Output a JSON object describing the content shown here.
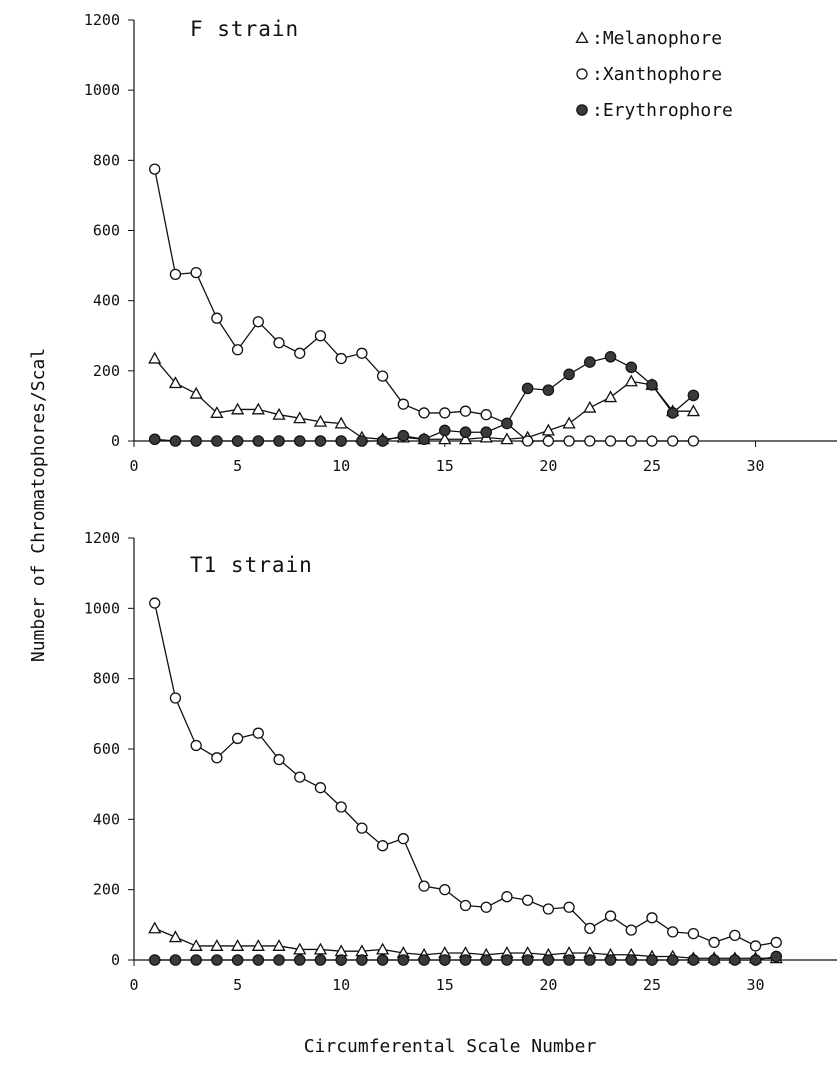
{
  "chart_data": [
    {
      "type": "line",
      "title": "F strain",
      "ylim": [
        0,
        1200
      ],
      "xlim": [
        0,
        32
      ],
      "yticks": [
        0,
        200,
        400,
        600,
        800,
        1000,
        1200
      ],
      "xticks": [
        0,
        5,
        10,
        15,
        20,
        25,
        30
      ],
      "legend": {
        "placement": "top-right",
        "entries": [
          {
            "marker": "triangle",
            "label": ":Melanophore"
          },
          {
            "marker": "circle-open",
            "label": ":Xanthophore"
          },
          {
            "marker": "circle-filled",
            "label": ":Erythrophore"
          }
        ]
      },
      "series": [
        {
          "name": "Melanophore",
          "marker": "triangle",
          "x": [
            1,
            2,
            3,
            4,
            5,
            6,
            7,
            8,
            9,
            10,
            11,
            12,
            13,
            14,
            15,
            16,
            17,
            18,
            19,
            20,
            21,
            22,
            23,
            24,
            25,
            26,
            27
          ],
          "values": [
            235,
            165,
            135,
            80,
            90,
            90,
            75,
            65,
            55,
            50,
            10,
            5,
            10,
            5,
            5,
            5,
            10,
            5,
            10,
            30,
            50,
            95,
            125,
            170,
            160,
            85,
            85
          ]
        },
        {
          "name": "Xanthophore",
          "marker": "circle-open",
          "x": [
            1,
            2,
            3,
            4,
            5,
            6,
            7,
            8,
            9,
            10,
            11,
            12,
            13,
            14,
            15,
            16,
            17,
            18,
            19,
            20,
            21,
            22,
            23,
            24,
            25,
            26,
            27
          ],
          "values": [
            775,
            475,
            480,
            350,
            260,
            340,
            280,
            250,
            300,
            235,
            250,
            185,
            105,
            80,
            80,
            85,
            75,
            50,
            0,
            0,
            0,
            0,
            0,
            0,
            0,
            0,
            0
          ]
        },
        {
          "name": "Erythrophore",
          "marker": "circle-filled",
          "x": [
            1,
            2,
            3,
            4,
            5,
            6,
            7,
            8,
            9,
            10,
            11,
            12,
            13,
            14,
            15,
            16,
            17,
            18,
            19,
            20,
            21,
            22,
            23,
            24,
            25,
            26,
            27
          ],
          "values": [
            5,
            0,
            0,
            0,
            0,
            0,
            0,
            0,
            0,
            0,
            0,
            0,
            15,
            5,
            30,
            25,
            25,
            50,
            150,
            145,
            190,
            225,
            240,
            210,
            160,
            80,
            130
          ]
        }
      ]
    },
    {
      "type": "line",
      "title": "T1 strain",
      "ylim": [
        0,
        1200
      ],
      "xlim": [
        0,
        32
      ],
      "yticks": [
        0,
        200,
        400,
        600,
        800,
        1000,
        1200
      ],
      "xticks": [
        0,
        5,
        10,
        15,
        20,
        25,
        30
      ],
      "series": [
        {
          "name": "Melanophore",
          "marker": "triangle",
          "x": [
            1,
            2,
            3,
            4,
            5,
            6,
            7,
            8,
            9,
            10,
            11,
            12,
            13,
            14,
            15,
            16,
            17,
            18,
            19,
            20,
            21,
            22,
            23,
            24,
            25,
            26,
            27,
            28,
            29,
            30,
            31
          ],
          "values": [
            90,
            65,
            40,
            40,
            40,
            40,
            40,
            30,
            30,
            25,
            25,
            30,
            20,
            15,
            20,
            20,
            15,
            20,
            20,
            15,
            20,
            20,
            15,
            15,
            10,
            10,
            5,
            5,
            5,
            5,
            5
          ]
        },
        {
          "name": "Xanthophore",
          "marker": "circle-open",
          "x": [
            1,
            2,
            3,
            4,
            5,
            6,
            7,
            8,
            9,
            10,
            11,
            12,
            13,
            14,
            15,
            16,
            17,
            18,
            19,
            20,
            21,
            22,
            23,
            24,
            25,
            26,
            27,
            28,
            29,
            30,
            31
          ],
          "values": [
            1015,
            745,
            610,
            575,
            630,
            645,
            570,
            520,
            490,
            435,
            375,
            325,
            345,
            210,
            200,
            155,
            150,
            180,
            170,
            145,
            150,
            90,
            125,
            85,
            120,
            80,
            75,
            50,
            70,
            40,
            50
          ]
        },
        {
          "name": "Erythrophore",
          "marker": "circle-filled",
          "x": [
            1,
            2,
            3,
            4,
            5,
            6,
            7,
            8,
            9,
            10,
            11,
            12,
            13,
            14,
            15,
            16,
            17,
            18,
            19,
            20,
            21,
            22,
            23,
            24,
            25,
            26,
            27,
            28,
            29,
            30,
            31
          ],
          "values": [
            0,
            0,
            0,
            0,
            0,
            0,
            0,
            0,
            0,
            0,
            0,
            0,
            0,
            0,
            0,
            0,
            0,
            0,
            0,
            0,
            0,
            0,
            0,
            0,
            0,
            0,
            0,
            0,
            0,
            0,
            10
          ]
        }
      ]
    }
  ],
  "shared_labels": {
    "ylabel": "Number of Chromatophores/Scal",
    "xlabel": "Circumferental Scale Number"
  }
}
